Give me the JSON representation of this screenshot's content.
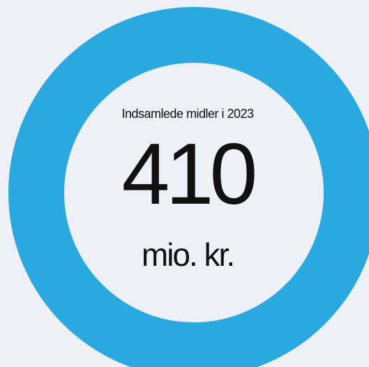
{
  "header": {
    "label": "Indsamlede midler i 2023",
    "value": "410",
    "unit": "mio. kr."
  }
}
